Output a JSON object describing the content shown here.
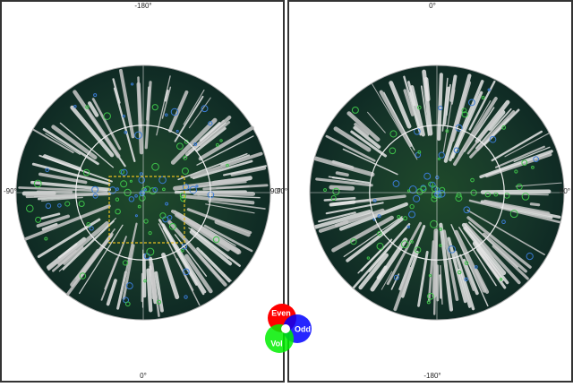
{
  "left_map": {
    "top_label": "-180°",
    "left_label": "-90°",
    "right_label": "90°",
    "bottom_label": "0°"
  },
  "right_map": {
    "top_label": "0°",
    "left_label": "90°",
    "right_label": "90°",
    "bottom_label": "-180°"
  },
  "legend": {
    "red": "Even",
    "blue": "Odd",
    "green": "Vol"
  }
}
